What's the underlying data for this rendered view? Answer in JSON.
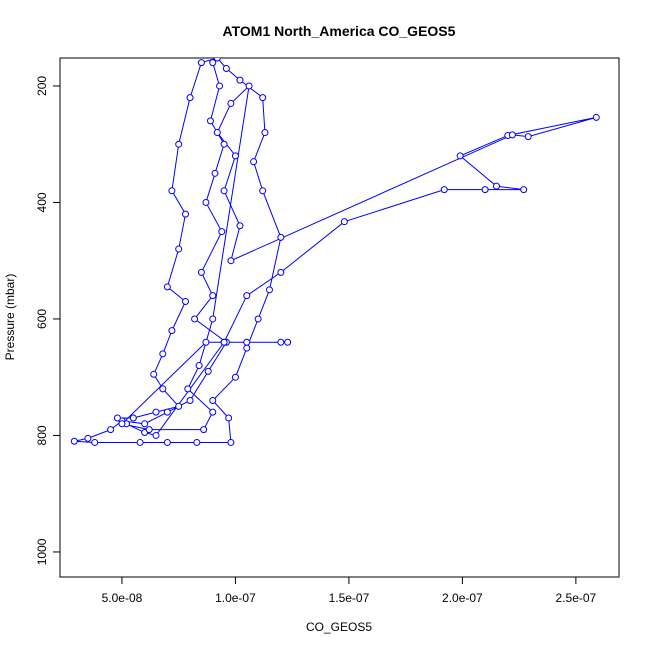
{
  "chart_data": {
    "type": "line",
    "title": "ATOM1 North_America CO_GEOS5",
    "x_label": "CO_GEOS5",
    "y_label": "Pressure (mbar)",
    "color": "#0000ff",
    "x": [
      9e-08,
      9.3e-08,
      8.9e-08,
      9.5e-08,
      9.1e-08,
      8.7e-08,
      9.4e-08,
      8.5e-08,
      9e-08,
      8.2e-08,
      9.6e-08,
      8.8e-08,
      8e-08,
      7e-08,
      6e-08,
      5e-08,
      4.5e-08,
      3.5e-08,
      2.9e-08,
      3.8e-08,
      5.8e-08,
      7e-08,
      8.3e-08,
      9.8e-08,
      9.7e-08,
      9e-08,
      1e-07,
      1.05e-07,
      1.1e-07,
      1.15e-07,
      1.2e-07,
      1.12e-07,
      1.08e-07,
      1.13e-07,
      1.12e-07,
      1.02e-07,
      9.6e-08,
      9.2e-08,
      8.5e-08,
      8e-08,
      7.5e-08,
      7.2e-08,
      7.8e-08,
      7.5e-08,
      7e-08,
      7.8e-08,
      7.2e-08,
      6.8e-08,
      6.4e-08,
      6.8e-08,
      7.5e-08,
      6.5e-08,
      5.5e-08,
      4.8e-08,
      5.2e-08,
      6e-08,
      6.5e-08,
      9.5e-08,
      1.05e-07,
      1.2e-07,
      1.48e-07,
      1.92e-07,
      2.1e-07,
      2.27e-07,
      2.15e-07,
      1.99e-07,
      2.2e-07,
      2.59e-07,
      2.29e-07,
      2.22e-07,
      9.8e-08,
      1.02e-07,
      9.5e-08,
      1e-07,
      9.2e-08,
      9.8e-08,
      1.06e-07,
      9e-08,
      8.4e-08,
      7.9e-08,
      9e-08,
      8.6e-08,
      6.2e-08,
      5e-08,
      8.7e-08,
      9.5e-08,
      1.05e-07,
      1.2e-07,
      1.23e-07
    ],
    "values": [
      160,
      200,
      260,
      300,
      350,
      400,
      450,
      520,
      560,
      600,
      640,
      690,
      740,
      760,
      780,
      775,
      790,
      805,
      810,
      812,
      812,
      812,
      812,
      812,
      770,
      740,
      700,
      650,
      600,
      550,
      460,
      380,
      330,
      280,
      220,
      190,
      170,
      152,
      160,
      220,
      300,
      380,
      420,
      480,
      545,
      570,
      620,
      660,
      695,
      720,
      750,
      760,
      770,
      770,
      780,
      795,
      800,
      640,
      560,
      520,
      433,
      378,
      378,
      378,
      372,
      320,
      285,
      254,
      287,
      284,
      500,
      440,
      380,
      320,
      280,
      230,
      200,
      600,
      680,
      720,
      760,
      790,
      790,
      780,
      640,
      640,
      640,
      640,
      640
    ],
    "xlim": [
      2.27e-08,
      2.69e-07
    ],
    "ylim": [
      1043,
      152
    ],
    "xticks": [
      {
        "value": 5e-08,
        "label": "5.0e-08"
      },
      {
        "value": 1e-07,
        "label": "1.0e-07"
      },
      {
        "value": 1.5e-07,
        "label": "1.5e-07"
      },
      {
        "value": 2e-07,
        "label": "2.0e-07"
      },
      {
        "value": 2.5e-07,
        "label": "2.5e-07"
      }
    ],
    "yticks": [
      200,
      400,
      600,
      800,
      1000
    ]
  }
}
